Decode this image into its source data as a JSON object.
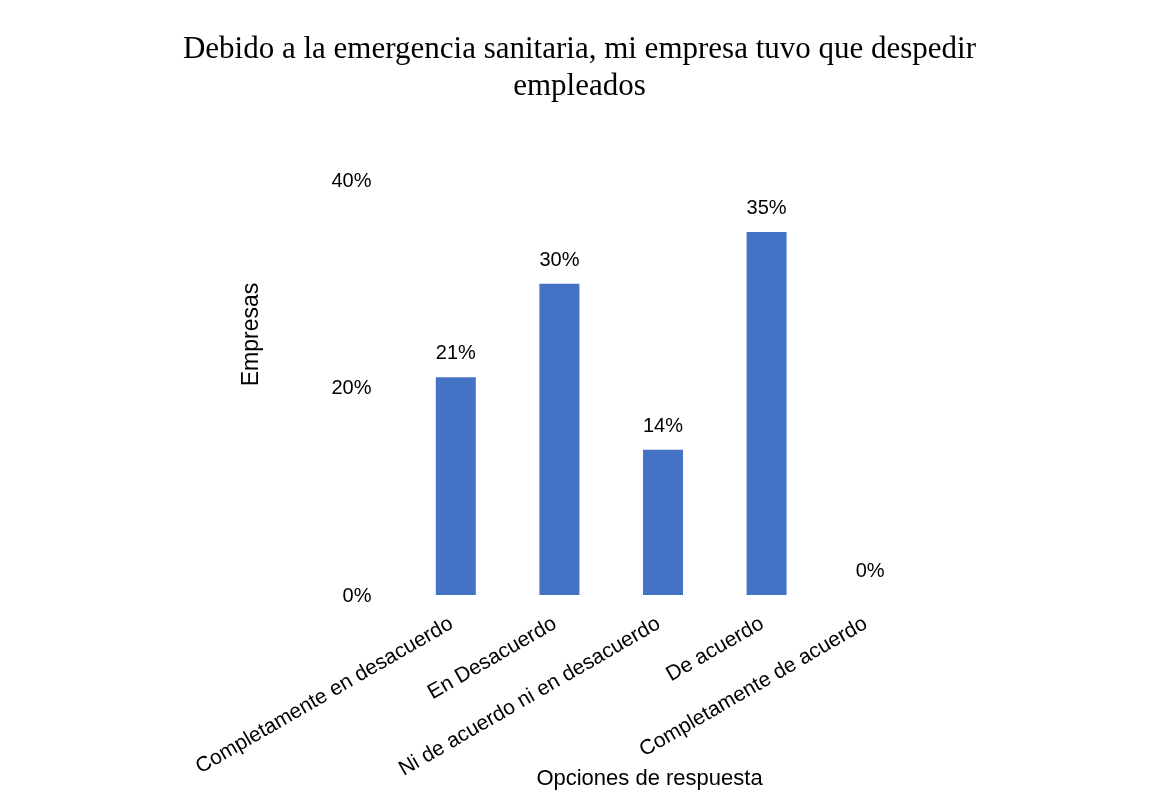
{
  "chart_data": {
    "type": "bar",
    "title": "Debido a la emergencia sanitaria, mi empresa tuvo que despedir empleados",
    "xlabel": "Opciones de respuesta",
    "ylabel": "Empresas",
    "categories": [
      "Completamente en desacuerdo",
      "En Desacuerdo",
      "Ni de acuerdo ni en desacuerdo",
      "De acuerdo",
      "Completamente de acuerdo"
    ],
    "values": [
      21,
      30,
      14,
      35,
      0
    ],
    "value_labels": [
      "21%",
      "30%",
      "14%",
      "35%",
      "0%"
    ],
    "color": "#4472c4",
    "ylim": [
      0,
      40
    ],
    "yticks": [
      {
        "value": 0,
        "label": "0%"
      },
      {
        "value": 20,
        "label": "20%"
      },
      {
        "value": 40,
        "label": "40%"
      }
    ]
  }
}
